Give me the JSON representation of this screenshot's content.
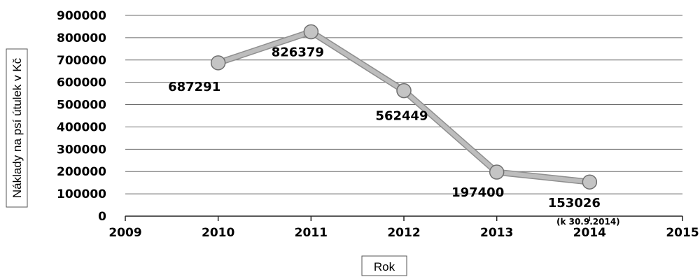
{
  "chart_data": {
    "type": "line",
    "title": "",
    "xlabel": "Rok",
    "ylabel": "Náklady na psí útulek v Kč",
    "xlim": [
      2009,
      2015
    ],
    "ylim": [
      0,
      900000
    ],
    "x_ticks": [
      "2009",
      "2010",
      "2011",
      "2012",
      "2013",
      "2014",
      "2015"
    ],
    "y_ticks": [
      "0",
      "100000",
      "200000",
      "300000",
      "400000",
      "500000",
      "600000",
      "700000",
      "800000",
      "900000"
    ],
    "grid": true,
    "legend": "none",
    "series": [
      {
        "x": [
          2010,
          2011,
          2012,
          2013,
          2014
        ],
        "values": [
          687291,
          826379,
          562449,
          197400,
          153026
        ],
        "labels": [
          "687291",
          "826379",
          "562449",
          "197400",
          "153026"
        ],
        "color": "#bdbdbd"
      }
    ],
    "annotations": [
      {
        "x": 2014,
        "text": "(k 30.9.2014)"
      }
    ]
  }
}
